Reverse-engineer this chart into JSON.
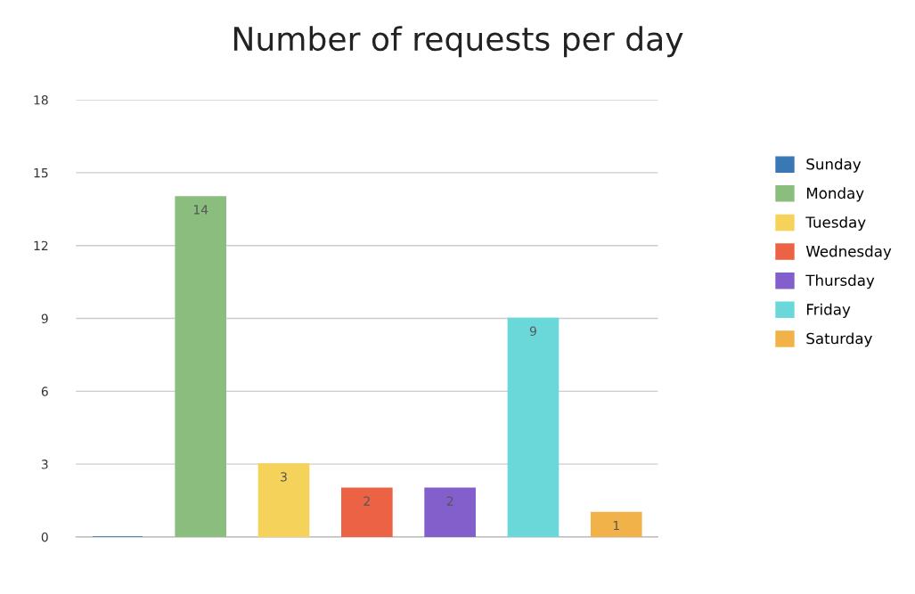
{
  "chart_data": {
    "type": "bar",
    "title": "Number of requests per day",
    "categories": [
      null,
      null,
      null,
      null,
      null,
      null,
      null
    ],
    "series": [
      {
        "name": "Sunday",
        "color": "#3a78b5",
        "values": [
          0,
          null,
          null,
          null,
          null,
          null,
          null
        ],
        "value_labels": [
          null,
          null,
          null,
          null,
          null,
          null,
          null
        ]
      },
      {
        "name": "Monday",
        "color": "#8bbe7e",
        "values": [
          null,
          14,
          null,
          null,
          null,
          null,
          null
        ],
        "value_labels": [
          null,
          "14",
          null,
          null,
          null,
          null,
          null
        ]
      },
      {
        "name": "Tuesday",
        "color": "#f5d35a",
        "values": [
          null,
          null,
          3,
          null,
          null,
          null,
          null
        ],
        "value_labels": [
          null,
          null,
          "3",
          null,
          null,
          null,
          null
        ]
      },
      {
        "name": "Wednesday",
        "color": "#ec6244",
        "values": [
          null,
          null,
          null,
          2,
          null,
          null,
          null
        ],
        "value_labels": [
          null,
          null,
          null,
          "2",
          null,
          null,
          null
        ]
      },
      {
        "name": "Thursday",
        "color": "#835fcb",
        "values": [
          null,
          null,
          null,
          null,
          2,
          null,
          null
        ],
        "value_labels": [
          null,
          null,
          null,
          null,
          "2",
          null,
          null
        ]
      },
      {
        "name": "Friday",
        "color": "#6ad8d8",
        "values": [
          null,
          null,
          null,
          null,
          null,
          9,
          null
        ],
        "value_labels": [
          null,
          null,
          null,
          null,
          null,
          "9",
          null
        ]
      },
      {
        "name": "Saturday",
        "color": "#f2b24a",
        "values": [
          null,
          null,
          null,
          null,
          null,
          null,
          1
        ],
        "value_labels": [
          null,
          null,
          null,
          null,
          null,
          null,
          "1"
        ]
      }
    ],
    "ylim": [
      0,
      18
    ],
    "yticks": [
      0,
      3,
      6,
      9,
      12,
      15,
      18
    ],
    "grid": "y",
    "legend": "right"
  }
}
